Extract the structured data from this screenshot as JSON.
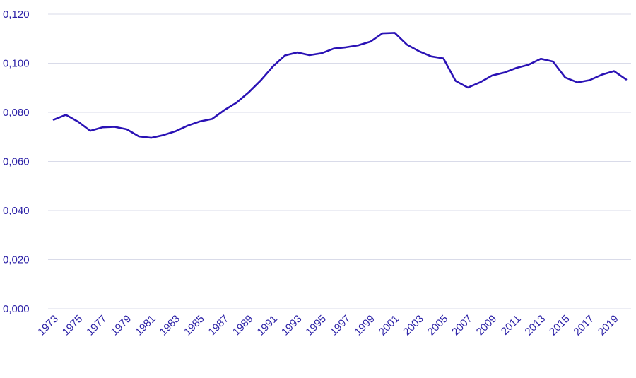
{
  "chart_data": {
    "type": "line",
    "title": "",
    "xlabel": "",
    "ylabel": "",
    "ylim": [
      0,
      0.12
    ],
    "yticks": [
      0,
      0.02,
      0.04,
      0.06,
      0.08,
      0.1,
      0.12
    ],
    "ytick_labels": [
      "0,000",
      "0,020",
      "0,040",
      "0,060",
      "0,080",
      "0,100",
      "0,120"
    ],
    "xtick_labels": [
      "1973",
      "1975",
      "1977",
      "1979",
      "1981",
      "1983",
      "1985",
      "1987",
      "1989",
      "1991",
      "1993",
      "1995",
      "1997",
      "1999",
      "2001",
      "2003",
      "2005",
      "2007",
      "2009",
      "2011",
      "2013",
      "2015",
      "2017",
      "2019"
    ],
    "grid": true,
    "colors": {
      "line": "#2a12b5",
      "text": "#2a1fa6",
      "grid": "#d9dbe9"
    },
    "x": [
      1973,
      1974,
      1975,
      1976,
      1977,
      1978,
      1979,
      1980,
      1981,
      1982,
      1983,
      1984,
      1985,
      1986,
      1987,
      1988,
      1989,
      1990,
      1991,
      1992,
      1993,
      1994,
      1995,
      1996,
      1997,
      1998,
      1999,
      2000,
      2001,
      2002,
      2003,
      2004,
      2005,
      2006,
      2007,
      2008,
      2009,
      2010,
      2011,
      2012,
      2013,
      2014,
      2015,
      2016,
      2017,
      2018,
      2019,
      2020
    ],
    "series": [
      {
        "values": [
          0.077,
          0.079,
          0.0762,
          0.0725,
          0.0739,
          0.0741,
          0.0731,
          0.0702,
          0.0696,
          0.0707,
          0.0723,
          0.0746,
          0.0763,
          0.0773,
          0.0809,
          0.0839,
          0.0881,
          0.093,
          0.0987,
          0.1032,
          0.1044,
          0.1033,
          0.1041,
          0.106,
          0.1065,
          0.1073,
          0.1088,
          0.1122,
          0.1124,
          0.1076,
          0.1049,
          0.1028,
          0.102,
          0.0928,
          0.0901,
          0.0922,
          0.095,
          0.0962,
          0.0981,
          0.0994,
          0.1018,
          0.1007,
          0.0942,
          0.0922,
          0.0931,
          0.0953,
          0.0968,
          0.0934
        ]
      }
    ]
  }
}
